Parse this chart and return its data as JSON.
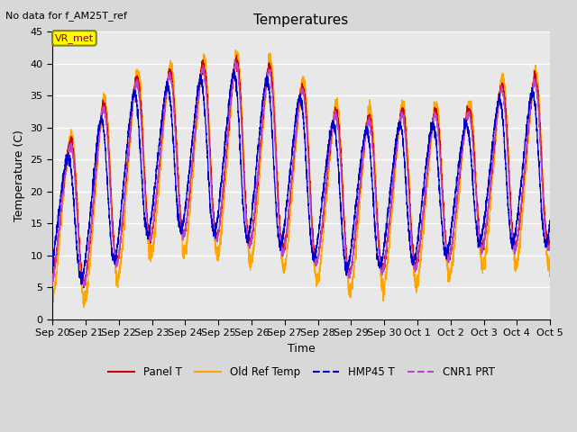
{
  "title": "Temperatures",
  "subtitle": "No data for f_AM25T_ref",
  "xlabel": "Time",
  "ylabel": "Temperature (C)",
  "ylim": [
    0,
    45
  ],
  "yticks": [
    0,
    5,
    10,
    15,
    20,
    25,
    30,
    35,
    40,
    45
  ],
  "annotation": "VR_met",
  "legend_labels": [
    "Panel T",
    "Old Ref Temp",
    "HMP45 T",
    "CNR1 PRT"
  ],
  "legend_colors": [
    "#cc0000",
    "#ffa500",
    "#0000cc",
    "#bb44cc"
  ],
  "plot_bg": "#e8e8e8",
  "fig_bg": "#d8d8d8",
  "n_days": 15,
  "points_per_day": 288,
  "date_labels": [
    "Sep 20",
    "Sep 21",
    "Sep 22",
    "Sep 23",
    "Sep 24",
    "Sep 25",
    "Sep 26",
    "Sep 27",
    "Sep 28",
    "Sep 29",
    "Sep 30",
    "Oct 1",
    "Oct 2",
    "Oct 3",
    "Oct 4",
    "Oct 5"
  ]
}
